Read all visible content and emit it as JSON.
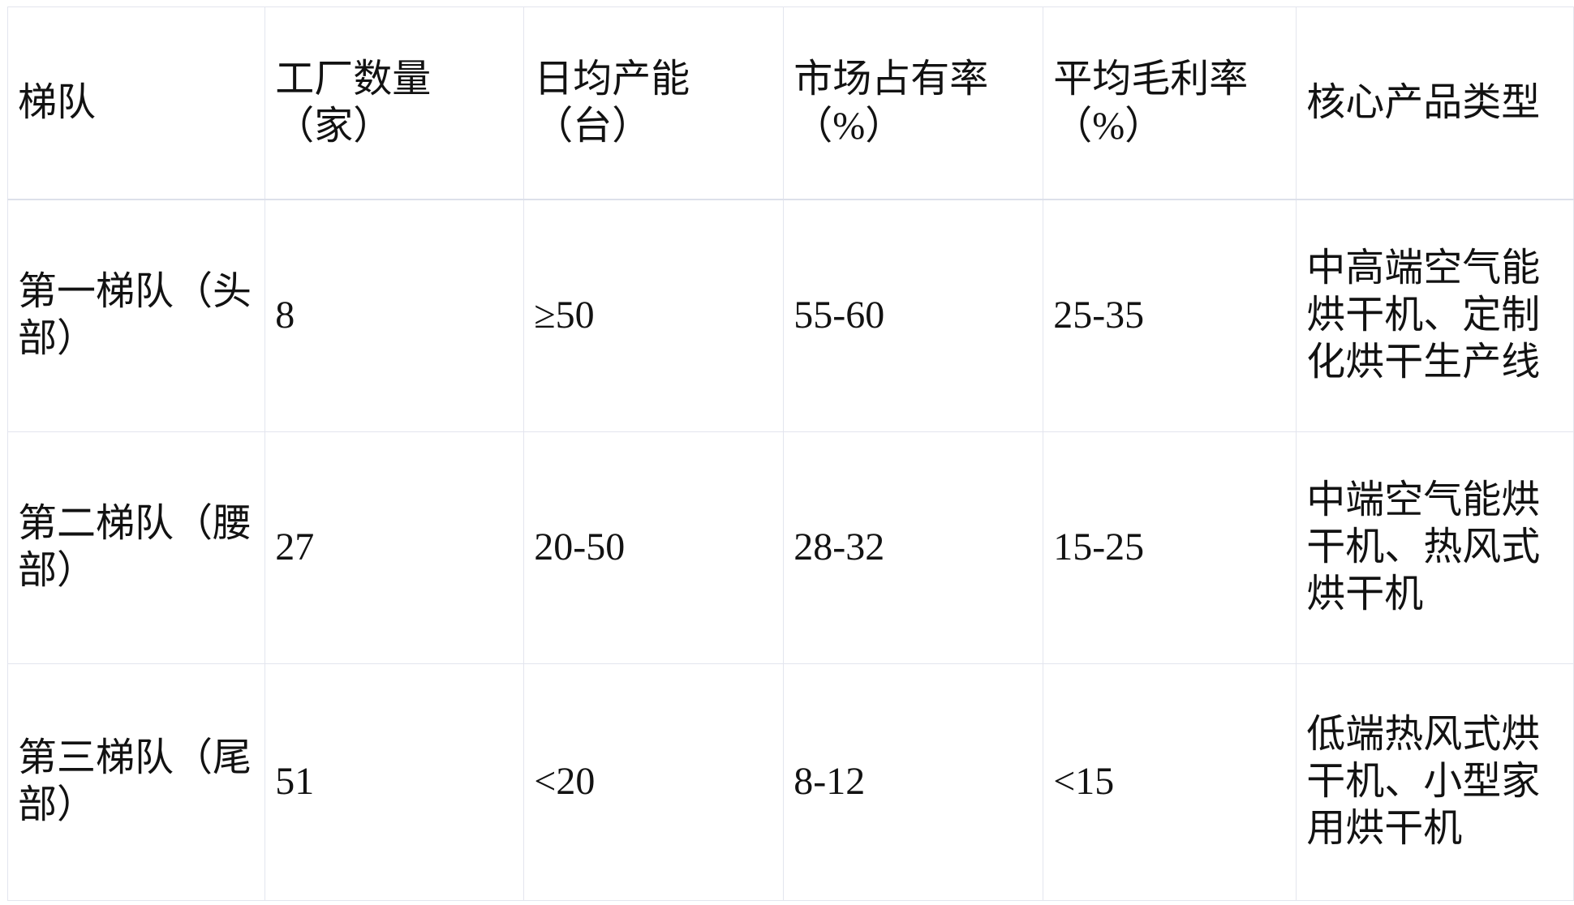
{
  "colors": {
    "background": "#ffffff",
    "text": "#121212",
    "grid_border": "#e3e5ee"
  },
  "table": {
    "header": [
      "梯队",
      "工厂数量（家）",
      "日均产能（台）",
      "市场占有率（%）",
      "平均毛利率（%）",
      "核心产品类型"
    ],
    "rows": [
      {
        "cells": [
          "第一梯队（头部）",
          "8",
          "≥50",
          "55-60",
          "25-35",
          "中高端空气能烘干机、定制化烘干生产线"
        ]
      },
      {
        "cells": [
          "第二梯队（腰部）",
          "27",
          "20-50",
          "28-32",
          "15-25",
          "中端空气能烘干机、热风式烘干机"
        ]
      },
      {
        "cells": [
          "第三梯队（尾部）",
          "51",
          "<20",
          "8-12",
          "<15",
          "低端热风式烘干机、小型家用烘干机"
        ]
      }
    ]
  }
}
